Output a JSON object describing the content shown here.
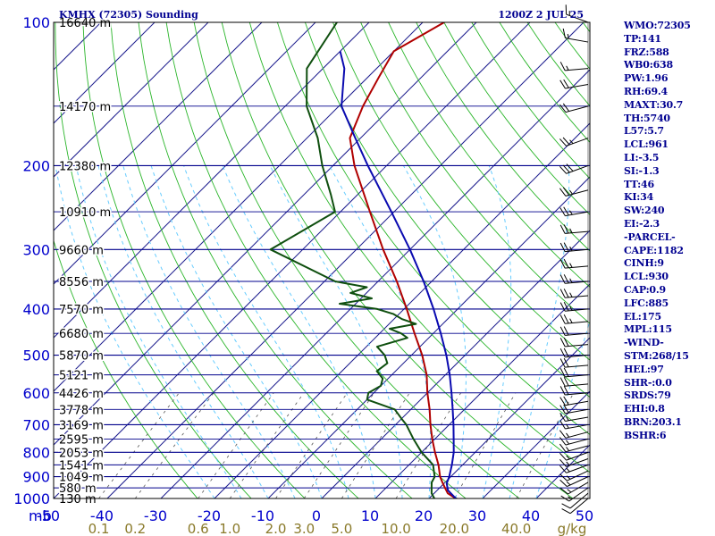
{
  "header": {
    "station": "KMHX (72305) Sounding",
    "time": "1200Z  2 JUL 25"
  },
  "stats": [
    "WMO:72305",
    "TP:141",
    "FRZ:588",
    "WB0:638",
    "PW:1.96",
    "RH:69.4",
    "MAXT:30.7",
    "TH:5740",
    "L57:5.7",
    "LCL:961",
    "LI:-3.5",
    "SI:-1.3",
    "TT:46",
    "KI:34",
    "SW:240",
    "EI:-2.3",
    "-PARCEL-",
    "CAPE:1182",
    "CINH:9",
    "LCL:930",
    "CAP:0.9",
    "LFC:885",
    "EL:175",
    "MPL:115",
    "-WIND-",
    "STM:268/15",
    "HEL:97",
    "SHR-:0.0",
    "SRDS:79",
    "EHI:0.8",
    "BRN:203.1",
    "BSHR:6"
  ],
  "colors": {
    "isobar": "#00008c",
    "isotherm": "#1a1a8c",
    "dry_adiabat": "#2ab52a",
    "moist_adiabat": "#66ccff",
    "mixing_ratio": "#555555",
    "temperature": "#b00000",
    "dewpoint": "#0f4f0f",
    "parcel": "#0a0ab0",
    "axis_text": "#0000cc",
    "mixing_text": "#8a7a2a",
    "wind": "#000000"
  },
  "chart_data": {
    "type": "line",
    "subtype": "skew-T log-P sounding",
    "y_axis": {
      "scale": "log",
      "reversed": true,
      "range": [
        1000,
        100
      ],
      "unit_label": "mb",
      "tick_labels": [
        "100",
        "200",
        "300",
        "400",
        "500",
        "600",
        "700",
        "800",
        "900",
        "1000"
      ]
    },
    "x_axis": {
      "range": [
        -50,
        50
      ],
      "unit": "C",
      "tick_labels": [
        "-50",
        "-40",
        "-30",
        "-20",
        "-10",
        "0",
        "10",
        "20",
        "30",
        "40",
        "50"
      ]
    },
    "mixing_ratio_axis": {
      "tick_labels": [
        "0.1",
        "0.2",
        "0.6",
        "1.0",
        "2.0",
        "3.0",
        "5.0",
        "10.0",
        "20.0",
        "40.0"
      ],
      "unit": "g/kg"
    },
    "height_labels": [
      {
        "p": 100,
        "label": "16640 m"
      },
      {
        "p": 150,
        "label": "14170 m"
      },
      {
        "p": 200,
        "label": "12380 m"
      },
      {
        "p": 250,
        "label": "10910 m"
      },
      {
        "p": 300,
        "label": "9660 m"
      },
      {
        "p": 350,
        "label": "8556 m"
      },
      {
        "p": 400,
        "label": "7570 m"
      },
      {
        "p": 450,
        "label": "6680 m"
      },
      {
        "p": 500,
        "label": "5870 m"
      },
      {
        "p": 550,
        "label": "5121 m"
      },
      {
        "p": 600,
        "label": "4426 m"
      },
      {
        "p": 650,
        "label": "3778 m"
      },
      {
        "p": 700,
        "label": "3169 m"
      },
      {
        "p": 750,
        "label": "2595 m"
      },
      {
        "p": 800,
        "label": "2053 m"
      },
      {
        "p": 850,
        "label": "1541 m"
      },
      {
        "p": 900,
        "label": "1049 m"
      },
      {
        "p": 950,
        "label": "580 m"
      },
      {
        "p": 1000,
        "label": "130 m"
      }
    ],
    "series": [
      {
        "key": "temperature",
        "color": "#b00000",
        "p": [
          1012,
          1000,
          975,
          950,
          925,
          900,
          850,
          800,
          750,
          700,
          650,
          600,
          550,
          500,
          450,
          400,
          350,
          300,
          250,
          200,
          175,
          150,
          130,
          115,
          100
        ],
        "t": [
          27.0,
          25.0,
          22.5,
          21.0,
          19.5,
          18.0,
          15.5,
          12.5,
          9.5,
          6.5,
          3.5,
          0.0,
          -3.5,
          -8.0,
          -13.5,
          -19.5,
          -26.5,
          -35.0,
          -44.5,
          -56.0,
          -62.0,
          -65.5,
          -68.0,
          -70.0,
          -66.0
        ]
      },
      {
        "key": "dewpoint",
        "color": "#0f4f0f",
        "p": [
          1012,
          1000,
          975,
          950,
          925,
          900,
          880,
          850,
          800,
          750,
          700,
          680,
          650,
          620,
          600,
          580,
          560,
          540,
          520,
          500,
          480,
          460,
          450,
          440,
          430,
          420,
          410,
          400,
          390,
          380,
          370,
          360,
          350,
          300,
          250,
          230,
          200,
          175,
          150,
          125,
          100
        ],
        "t": [
          22.0,
          21.0,
          19.5,
          18.5,
          17.5,
          17.0,
          16.0,
          14.5,
          10.0,
          6.0,
          2.0,
          0.0,
          -3.0,
          -10.0,
          -11.0,
          -10.0,
          -11.0,
          -13.5,
          -13.0,
          -15.0,
          -18.0,
          -14.0,
          -16.0,
          -19.0,
          -15.0,
          -18.5,
          -21.0,
          -25.0,
          -33.0,
          -28.0,
          -33.0,
          -31.0,
          -38.0,
          -56.0,
          -51.0,
          -55.0,
          -62.0,
          -68.0,
          -76.0,
          -83.0,
          -86.0
        ]
      },
      {
        "key": "parcel",
        "color": "#0a0ab0",
        "p": [
          1012,
          1000,
          961,
          930,
          900,
          850,
          800,
          750,
          700,
          650,
          600,
          550,
          500,
          450,
          400,
          350,
          300,
          250,
          200,
          175,
          150,
          125,
          115
        ],
        "t": [
          27.0,
          25.0,
          22.0,
          20.5,
          19.7,
          18.0,
          16.0,
          13.5,
          10.8,
          7.8,
          4.5,
          0.8,
          -3.5,
          -8.6,
          -14.5,
          -21.5,
          -30.0,
          -40.5,
          -53.5,
          -61.0,
          -69.5,
          -76.0,
          -80.0
        ]
      }
    ],
    "wind_profile": {
      "units": "kt",
      "levels": [
        {
          "p": 1000,
          "dir": 230,
          "spd": 10
        },
        {
          "p": 975,
          "dir": 230,
          "spd": 12
        },
        {
          "p": 950,
          "dir": 235,
          "spd": 15
        },
        {
          "p": 925,
          "dir": 240,
          "spd": 15
        },
        {
          "p": 900,
          "dir": 245,
          "spd": 15
        },
        {
          "p": 875,
          "dir": 245,
          "spd": 15
        },
        {
          "p": 850,
          "dir": 250,
          "spd": 15
        },
        {
          "p": 825,
          "dir": 250,
          "spd": 15
        },
        {
          "p": 800,
          "dir": 250,
          "spd": 15
        },
        {
          "p": 775,
          "dir": 255,
          "spd": 15
        },
        {
          "p": 750,
          "dir": 255,
          "spd": 15
        },
        {
          "p": 725,
          "dir": 255,
          "spd": 15
        },
        {
          "p": 700,
          "dir": 260,
          "spd": 15
        },
        {
          "p": 675,
          "dir": 260,
          "spd": 15
        },
        {
          "p": 650,
          "dir": 260,
          "spd": 20
        },
        {
          "p": 625,
          "dir": 260,
          "spd": 20
        },
        {
          "p": 600,
          "dir": 265,
          "spd": 20
        },
        {
          "p": 575,
          "dir": 265,
          "spd": 20
        },
        {
          "p": 550,
          "dir": 265,
          "spd": 20
        },
        {
          "p": 525,
          "dir": 265,
          "spd": 20
        },
        {
          "p": 500,
          "dir": 265,
          "spd": 20
        },
        {
          "p": 475,
          "dir": 265,
          "spd": 20
        },
        {
          "p": 450,
          "dir": 265,
          "spd": 20
        },
        {
          "p": 425,
          "dir": 265,
          "spd": 25
        },
        {
          "p": 400,
          "dir": 265,
          "spd": 25
        },
        {
          "p": 375,
          "dir": 265,
          "spd": 25
        },
        {
          "p": 350,
          "dir": 265,
          "spd": 25
        },
        {
          "p": 325,
          "dir": 265,
          "spd": 25
        },
        {
          "p": 300,
          "dir": 265,
          "spd": 25
        },
        {
          "p": 275,
          "dir": 265,
          "spd": 25
        },
        {
          "p": 250,
          "dir": 260,
          "spd": 25
        },
        {
          "p": 225,
          "dir": 255,
          "spd": 25
        },
        {
          "p": 200,
          "dir": 250,
          "spd": 30
        },
        {
          "p": 175,
          "dir": 250,
          "spd": 25
        },
        {
          "p": 150,
          "dir": 255,
          "spd": 20
        },
        {
          "p": 135,
          "dir": 260,
          "spd": 20
        },
        {
          "p": 125,
          "dir": 265,
          "spd": 15
        },
        {
          "p": 110,
          "dir": 280,
          "spd": 15
        },
        {
          "p": 100,
          "dir": 290,
          "spd": 15
        }
      ]
    }
  }
}
